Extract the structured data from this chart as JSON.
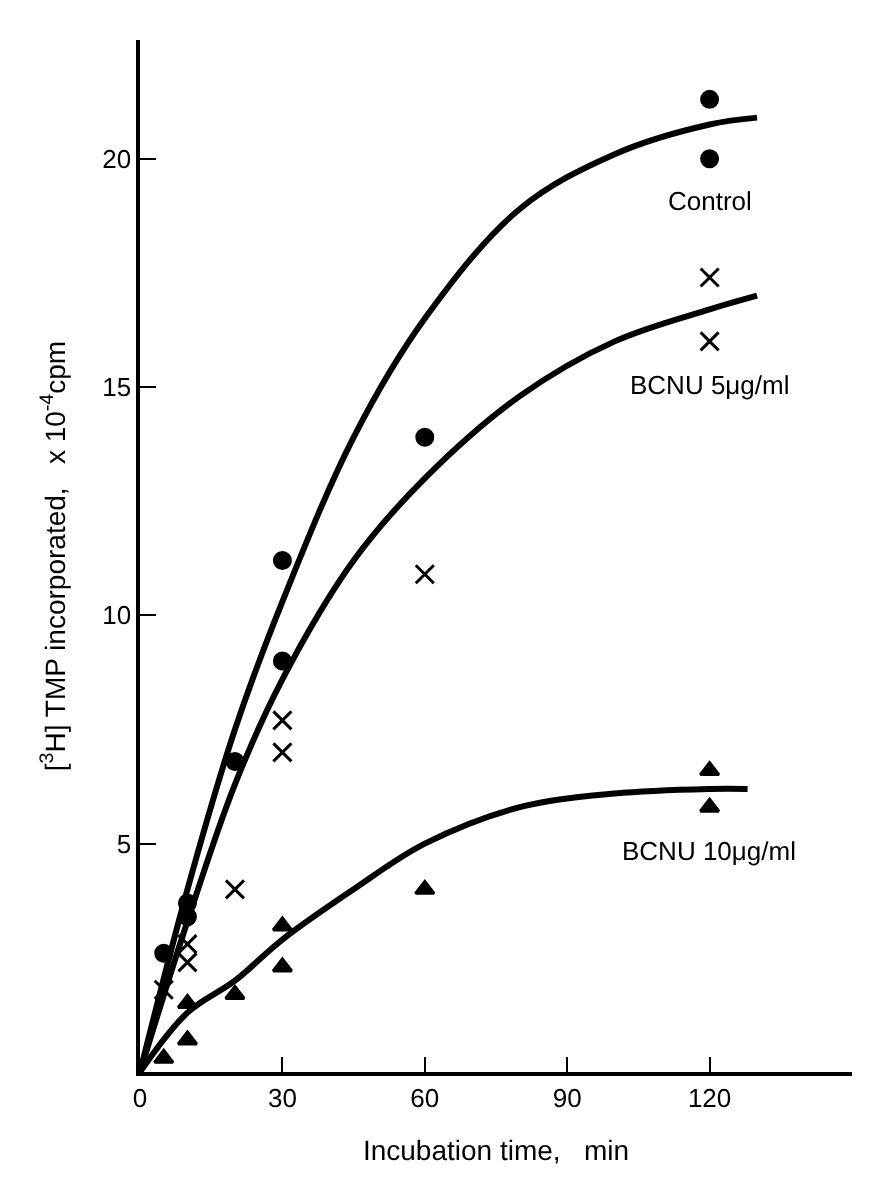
{
  "chart_data": {
    "type": "scatter",
    "xlabel": "Incubation time,   min",
    "ylabel": "[$^{3}$H] TMP incorporated,   x 10$^{-4}$cpm",
    "xlim": [
      0,
      150
    ],
    "ylim": [
      0,
      22.6
    ],
    "xticks": [
      0,
      30,
      60,
      90,
      120
    ],
    "yticks": [
      5,
      10,
      15,
      20
    ],
    "legend": false,
    "series": [
      {
        "name": "Control",
        "marker": "circle",
        "color": "#000000",
        "x": [
          5,
          10,
          10,
          20,
          30,
          30,
          60,
          120,
          120
        ],
        "values": [
          2.6,
          3.7,
          3.4,
          6.8,
          11.2,
          9.0,
          13.9,
          21.3,
          20.0
        ]
      },
      {
        "name": "BCNU 5μg/ml",
        "marker": "cross",
        "color": "#000000",
        "x": [
          5,
          10,
          10,
          20,
          30,
          30,
          60,
          120,
          120
        ],
        "values": [
          1.8,
          2.8,
          2.4,
          4.0,
          7.7,
          7.0,
          10.9,
          17.4,
          16.0
        ]
      },
      {
        "name": "BCNU 10μg/ml",
        "marker": "triangle",
        "color": "#000000",
        "x": [
          5,
          10,
          10,
          20,
          30,
          30,
          60,
          120,
          120
        ],
        "values": [
          0.3,
          0.7,
          1.5,
          1.7,
          3.2,
          2.3,
          4.0,
          6.6,
          5.8
        ]
      },
      {
        "type": "line",
        "line_style": "solid",
        "color": "#000000",
        "x": [
          0,
          10,
          20,
          30,
          45,
          60,
          80,
          100,
          120,
          130
        ],
        "values": [
          0,
          4.0,
          7.5,
          10.3,
          13.9,
          16.5,
          18.9,
          20.1,
          20.75,
          20.9
        ]
      },
      {
        "type": "line",
        "line_style": "solid",
        "color": "#000000",
        "x": [
          0,
          10,
          20,
          30,
          45,
          60,
          80,
          100,
          120,
          130
        ],
        "values": [
          0,
          3.3,
          6.3,
          8.6,
          11.2,
          13.0,
          14.8,
          16.0,
          16.7,
          17.0
        ]
      },
      {
        "type": "line",
        "line_style": "solid",
        "color": "#000000",
        "x": [
          0,
          10,
          20,
          30,
          45,
          60,
          80,
          100,
          120,
          128
        ],
        "values": [
          0,
          1.3,
          2.0,
          2.9,
          4.0,
          5.0,
          5.8,
          6.1,
          6.2,
          6.2
        ]
      }
    ]
  }
}
